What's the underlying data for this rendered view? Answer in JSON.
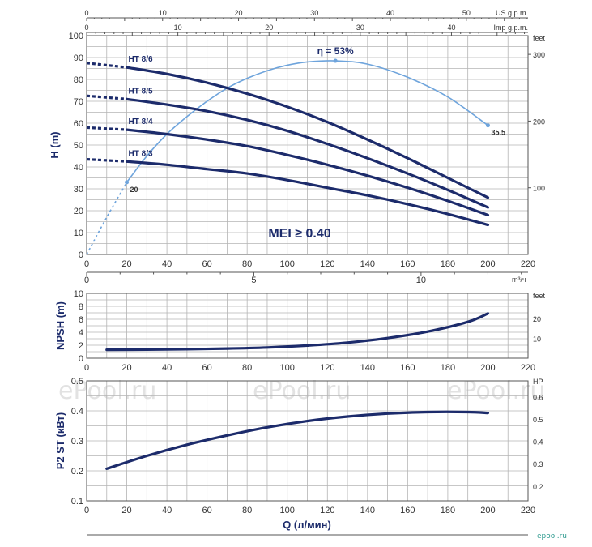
{
  "chart_data": [
    {
      "type": "line",
      "panel": "head",
      "ylabel": "H (m)",
      "y_right_label": "feet",
      "y_ticks": [
        0,
        10,
        20,
        30,
        40,
        50,
        60,
        70,
        80,
        90,
        100
      ],
      "y_right_ticks": [
        100,
        200,
        300
      ],
      "x_ticks": [
        0,
        20,
        40,
        60,
        80,
        100,
        120,
        140,
        160,
        180,
        200,
        220
      ],
      "xlim": [
        0,
        220
      ],
      "ylim": [
        0,
        100
      ],
      "top_axis_us": {
        "label": "US g.p.m.",
        "ticks": [
          0,
          10,
          20,
          30,
          40,
          50
        ]
      },
      "top_axis_imp": {
        "label": "Imp g.p.m.",
        "ticks": [
          0,
          10,
          20,
          30,
          40
        ]
      },
      "bottom_m3h_axis": {
        "label": "m³/ч",
        "ticks": [
          0,
          5,
          10
        ]
      },
      "series": [
        {
          "name": "HT 8/6",
          "x": [
            0,
            20,
            40,
            60,
            80,
            100,
            120,
            140,
            160,
            180,
            200
          ],
          "y": [
            87.5,
            85.5,
            82.5,
            78.5,
            73.5,
            67.5,
            60.5,
            52.5,
            44,
            35,
            26
          ]
        },
        {
          "name": "HT 8/5",
          "x": [
            0,
            20,
            40,
            60,
            80,
            100,
            120,
            140,
            160,
            180,
            200
          ],
          "y": [
            72.5,
            71,
            68.5,
            65.5,
            61.5,
            56.5,
            50.5,
            44,
            37,
            29.5,
            21.5
          ]
        },
        {
          "name": "HT 8/4",
          "x": [
            0,
            20,
            40,
            60,
            80,
            100,
            120,
            140,
            160,
            180,
            200
          ],
          "y": [
            58,
            57,
            55,
            52.5,
            49.5,
            45.5,
            41,
            36,
            30.5,
            24.5,
            18
          ]
        },
        {
          "name": "HT 8/3",
          "x": [
            0,
            20,
            40,
            60,
            80,
            100,
            120,
            140,
            160,
            180,
            200
          ],
          "y": [
            43.5,
            42.5,
            41,
            39,
            37,
            34,
            30.5,
            27,
            23,
            18.5,
            13.5
          ]
        }
      ],
      "efficiency": {
        "label": "η = 53%",
        "x": [
          0,
          10,
          20,
          30,
          40,
          50,
          60,
          70,
          80,
          90,
          100,
          110,
          124,
          140,
          160,
          180,
          200
        ],
        "y": [
          0,
          17,
          33,
          45,
          55,
          63,
          70,
          76,
          80.5,
          84,
          86.5,
          88,
          88.5,
          87,
          81,
          72,
          59
        ],
        "point_labels": [
          {
            "x": 20,
            "y": 33,
            "text": "20"
          },
          {
            "x": 200,
            "y": 59,
            "text": "35.5"
          }
        ]
      },
      "annotation": "MEI ≥ 0.40"
    },
    {
      "type": "line",
      "panel": "npsh",
      "ylabel": "NPSH (m)",
      "y_right_label": "feet",
      "y_ticks": [
        0,
        2,
        4,
        6,
        8,
        10
      ],
      "y_right_ticks": [
        10,
        20
      ],
      "x_ticks": [
        0,
        20,
        40,
        60,
        80,
        100,
        120,
        140,
        160,
        180,
        200,
        220
      ],
      "xlim": [
        0,
        220
      ],
      "ylim": [
        0,
        10
      ],
      "series": [
        {
          "name": "NPSH",
          "x": [
            10,
            30,
            50,
            70,
            90,
            110,
            130,
            150,
            170,
            190,
            200
          ],
          "y": [
            1.3,
            1.32,
            1.38,
            1.48,
            1.65,
            1.95,
            2.4,
            3.1,
            4.1,
            5.6,
            6.9
          ]
        }
      ]
    },
    {
      "type": "line",
      "panel": "power",
      "ylabel": "P2 ST (кВт)",
      "y_right_label": "HP",
      "xlabel": "Q (л/мин)",
      "y_ticks": [
        0.1,
        0.2,
        0.3,
        0.4,
        0.5
      ],
      "y_right_ticks": [
        0.2,
        0.3,
        0.4,
        0.5,
        0.6
      ],
      "x_ticks": [
        0,
        20,
        40,
        60,
        80,
        100,
        120,
        140,
        160,
        180,
        200,
        220
      ],
      "xlim": [
        0,
        220
      ],
      "ylim": [
        0.1,
        0.5
      ],
      "series": [
        {
          "name": "P2",
          "x": [
            10,
            30,
            50,
            70,
            90,
            110,
            130,
            150,
            170,
            190,
            200
          ],
          "y": [
            0.207,
            0.25,
            0.287,
            0.318,
            0.345,
            0.366,
            0.381,
            0.391,
            0.396,
            0.396,
            0.393
          ]
        }
      ]
    }
  ],
  "watermark": "ePool.ru",
  "logo_text": "epool.ru",
  "colors": {
    "curve": "#1c2b6b",
    "efficiency": "#6ea4dc",
    "grid": "#b4b4b4",
    "logo": "#2e9a8f"
  }
}
